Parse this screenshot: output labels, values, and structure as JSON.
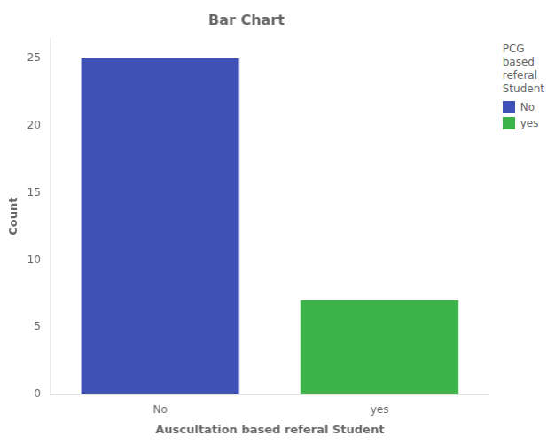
{
  "chart_data": {
    "type": "bar",
    "title": "Bar Chart",
    "xlabel": "Auscultation based referal Student",
    "ylabel": "Count",
    "categories": [
      "No",
      "yes"
    ],
    "values": [
      25,
      7
    ],
    "colors": [
      "#3f51b5",
      "#3db34a"
    ],
    "ylim": [
      0,
      26.5
    ],
    "yticks": [
      0,
      5,
      10,
      15,
      20,
      25
    ],
    "grid": false,
    "legend": "right",
    "legend_title": "PCG\nbased\nreferal\nStudent"
  }
}
